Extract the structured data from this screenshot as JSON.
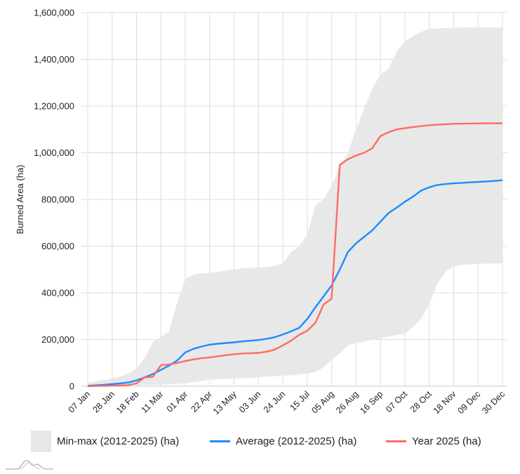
{
  "chart_data": {
    "type": "area",
    "title": "",
    "xlabel": "",
    "ylabel": "Burned Area (ha)",
    "ylim": [
      0,
      1600000
    ],
    "yticks": [
      0,
      200000,
      400000,
      600000,
      800000,
      1000000,
      1200000,
      1400000,
      1600000
    ],
    "ytick_labels": [
      "0",
      "200,000",
      "400,000",
      "600,000",
      "800,000",
      "1,000,000",
      "1,200,000",
      "1,400,000",
      "1,600,000"
    ],
    "xtick_labels": [
      "07 Jan",
      "28 Jan",
      "18 Feb",
      "11 Mar",
      "01 Apr",
      "22 Apr",
      "13 May",
      "03 Jun",
      "24 Jun",
      "15 Jul",
      "05 Aug",
      "26 Aug",
      "16 Sep",
      "07 Oct",
      "28 Oct",
      "18 Nov",
      "09 Dec",
      "30 Dec"
    ],
    "x_weeks": 52,
    "grid": true,
    "legend_position": "bottom",
    "series": [
      {
        "name": "Min-max (2012-2025) (ha)",
        "kind": "band",
        "color": "#e8e8e8",
        "min": [
          0,
          1000,
          2000,
          2500,
          3000,
          3500,
          4000,
          5000,
          6000,
          7000,
          8000,
          10000,
          12000,
          18000,
          22000,
          28000,
          30000,
          32000,
          33000,
          34000,
          35000,
          38000,
          41000,
          43000,
          45000,
          47000,
          50000,
          55000,
          60000,
          80000,
          115000,
          140000,
          175000,
          185000,
          192000,
          198000,
          205000,
          212000,
          220000,
          225000,
          255000,
          290000,
          350000,
          440000,
          490000,
          515000,
          520000,
          522000,
          524000,
          525000,
          526000,
          527000
        ],
        "max": [
          15000,
          22000,
          28000,
          33000,
          42000,
          55000,
          75000,
          120000,
          190000,
          210000,
          235000,
          360000,
          460000,
          478000,
          484000,
          486000,
          490000,
          496000,
          500000,
          505000,
          507000,
          508000,
          510000,
          515000,
          525000,
          575000,
          600000,
          650000,
          775000,
          800000,
          860000,
          940000,
          1000000,
          1100000,
          1190000,
          1275000,
          1335000,
          1360000,
          1435000,
          1475000,
          1500000,
          1518000,
          1530000,
          1533000,
          1534000,
          1535000,
          1536000,
          1536000,
          1536000,
          1536000,
          1536000,
          1536000
        ]
      },
      {
        "name": "Average (2012-2025) (ha)",
        "kind": "line",
        "color": "#1a8cff",
        "values": [
          2000,
          4000,
          6000,
          9000,
          12000,
          16000,
          25000,
          38000,
          52000,
          70000,
          88000,
          110000,
          145000,
          160000,
          170000,
          178000,
          182000,
          185000,
          188000,
          192000,
          195000,
          198000,
          203000,
          210000,
          222000,
          235000,
          250000,
          288000,
          338000,
          385000,
          432000,
          500000,
          575000,
          612000,
          640000,
          668000,
          705000,
          742000,
          765000,
          790000,
          812000,
          838000,
          852000,
          862000,
          866000,
          869000,
          871000,
          873000,
          875000,
          877000,
          879000,
          882000
        ]
      },
      {
        "name": "Year 2025 (ha)",
        "kind": "line",
        "color": "#ff6b63",
        "values": [
          0,
          1000,
          1500,
          2000,
          3000,
          5000,
          12000,
          38000,
          40000,
          90000,
          93000,
          100000,
          108000,
          115000,
          120000,
          123000,
          128000,
          133000,
          137000,
          140000,
          141000,
          143000,
          148000,
          157000,
          175000,
          195000,
          220000,
          238000,
          272000,
          350000,
          375000,
          948000,
          972000,
          988000,
          1000000,
          1020000,
          1072000,
          1088000,
          1100000,
          1105000,
          1110000,
          1114000,
          1118000,
          1120000,
          1122000,
          1124000,
          1124500,
          1125000,
          1125500,
          1126000,
          1126000,
          1126000
        ]
      }
    ]
  },
  "legend": {
    "items": [
      {
        "label": "Min-max (2012-2025) (ha)",
        "color": "#e8e8e8"
      },
      {
        "label": "Average (2012-2025) (ha)",
        "color": "#1a8cff"
      },
      {
        "label": "Year 2025 (ha)",
        "color": "#ff6b63"
      }
    ]
  },
  "logo": {
    "icon": "mountain-waves-logo-icon"
  }
}
